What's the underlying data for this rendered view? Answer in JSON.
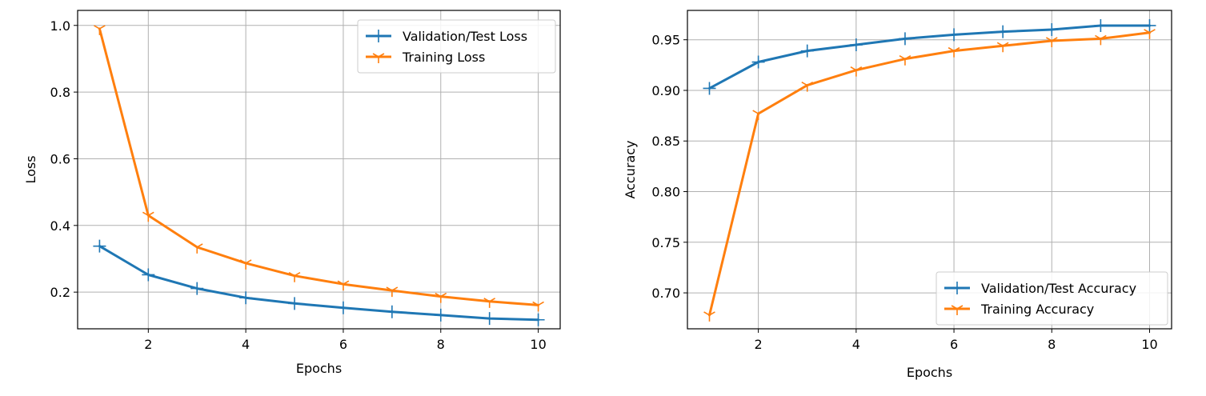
{
  "colors": {
    "validation": "#1f77b4",
    "training": "#ff7f0e",
    "grid": "#b0b0b0",
    "axes": "#000000",
    "background": "#ffffff"
  },
  "chart_data": [
    {
      "type": "line",
      "title": "",
      "xlabel": "Epochs",
      "ylabel": "Loss",
      "xlim": [
        0.55,
        10.45
      ],
      "ylim": [
        0.09,
        1.045
      ],
      "xticks": [
        2,
        4,
        6,
        8,
        10
      ],
      "xtick_labels": [
        "2",
        "4",
        "6",
        "8",
        "10"
      ],
      "yticks": [
        0.2,
        0.4,
        0.6,
        0.8,
        1.0
      ],
      "ytick_labels": [
        "0.2",
        "0.4",
        "0.6",
        "0.8",
        "1.0"
      ],
      "grid": true,
      "legend_position": "top-right",
      "x": [
        1,
        2,
        3,
        4,
        5,
        6,
        7,
        8,
        9,
        10
      ],
      "series": [
        {
          "name": "Validation/Test Loss",
          "color": "#1f77b4",
          "marker": "plus",
          "values": [
            0.338,
            0.252,
            0.211,
            0.183,
            0.166,
            0.153,
            0.141,
            0.131,
            0.121,
            0.117
          ]
        },
        {
          "name": "Training Loss",
          "color": "#ff7f0e",
          "marker": "tri",
          "values": [
            0.99,
            0.43,
            0.335,
            0.287,
            0.249,
            0.224,
            0.205,
            0.187,
            0.172,
            0.161
          ]
        }
      ]
    },
    {
      "type": "line",
      "title": "",
      "xlabel": "Epochs",
      "ylabel": "Accuracy",
      "xlim": [
        0.55,
        10.45
      ],
      "ylim": [
        0.6645,
        0.979
      ],
      "xticks": [
        2,
        4,
        6,
        8,
        10
      ],
      "xtick_labels": [
        "2",
        "4",
        "6",
        "8",
        "10"
      ],
      "yticks": [
        0.7,
        0.75,
        0.8,
        0.85,
        0.9,
        0.95
      ],
      "ytick_labels": [
        "0.70",
        "0.75",
        "0.80",
        "0.85",
        "0.90",
        "0.95"
      ],
      "grid": true,
      "legend_position": "bottom-right",
      "x": [
        1,
        2,
        3,
        4,
        5,
        6,
        7,
        8,
        9,
        10
      ],
      "series": [
        {
          "name": "Validation/Test Accuracy",
          "color": "#1f77b4",
          "marker": "plus",
          "values": [
            0.902,
            0.928,
            0.939,
            0.945,
            0.951,
            0.955,
            0.958,
            0.96,
            0.964,
            0.964
          ]
        },
        {
          "name": "Training Accuracy",
          "color": "#ff7f0e",
          "marker": "tri",
          "values": [
            0.678,
            0.877,
            0.905,
            0.92,
            0.931,
            0.939,
            0.944,
            0.949,
            0.951,
            0.957
          ]
        }
      ]
    }
  ]
}
